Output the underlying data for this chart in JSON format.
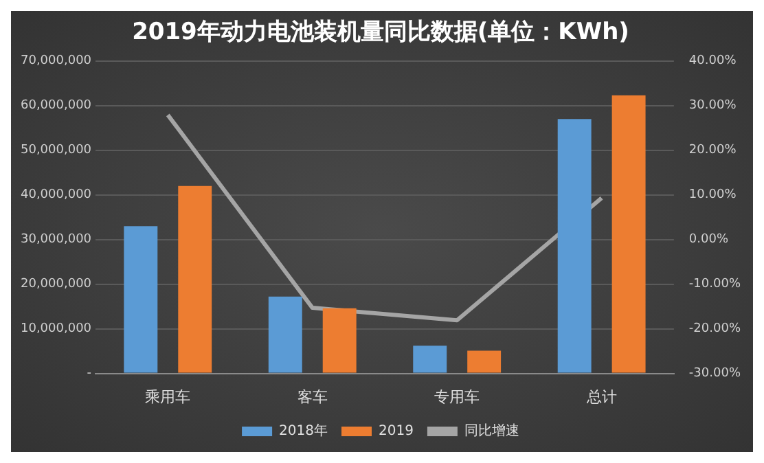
{
  "chart_data": {
    "type": "bar",
    "title": "2019年动力电池装机量同比数据(单位：KWh)",
    "categories": [
      "乘用车",
      "客车",
      "专用车",
      "总计"
    ],
    "series": [
      {
        "name": "2018年",
        "color": "#5b9bd5",
        "values": [
          33000000,
          17200000,
          6200000,
          57000000
        ]
      },
      {
        "name": "2019",
        "color": "#ed7d31",
        "values": [
          42000000,
          14600000,
          5100000,
          62300000
        ]
      },
      {
        "name": "同比增速",
        "type": "line",
        "axis": "y2",
        "color": "#a5a5a5",
        "values": [
          27.9,
          -15.3,
          -18.1,
          9.3
        ]
      }
    ],
    "ylim": [
      0,
      70000000
    ],
    "yticks": [
      {
        "value": 0,
        "label": "-"
      },
      {
        "value": 10000000,
        "label": "10,000,000"
      },
      {
        "value": 20000000,
        "label": "20,000,000"
      },
      {
        "value": 30000000,
        "label": "30,000,000"
      },
      {
        "value": 40000000,
        "label": "40,000,000"
      },
      {
        "value": 50000000,
        "label": "50,000,000"
      },
      {
        "value": 60000000,
        "label": "60,000,000"
      },
      {
        "value": 70000000,
        "label": "70,000,000"
      }
    ],
    "y2lim": [
      -30,
      40
    ],
    "y2ticks": [
      {
        "value": -30,
        "label": "-30.00%"
      },
      {
        "value": -20,
        "label": "-20.00%"
      },
      {
        "value": -10,
        "label": "-10.00%"
      },
      {
        "value": 0,
        "label": "0.00%"
      },
      {
        "value": 10,
        "label": "10.00%"
      },
      {
        "value": 20,
        "label": "20.00%"
      },
      {
        "value": 30,
        "label": "30.00%"
      },
      {
        "value": 40,
        "label": "40.00%"
      }
    ],
    "grid": "y",
    "legend": "bottom",
    "marker": "none"
  }
}
